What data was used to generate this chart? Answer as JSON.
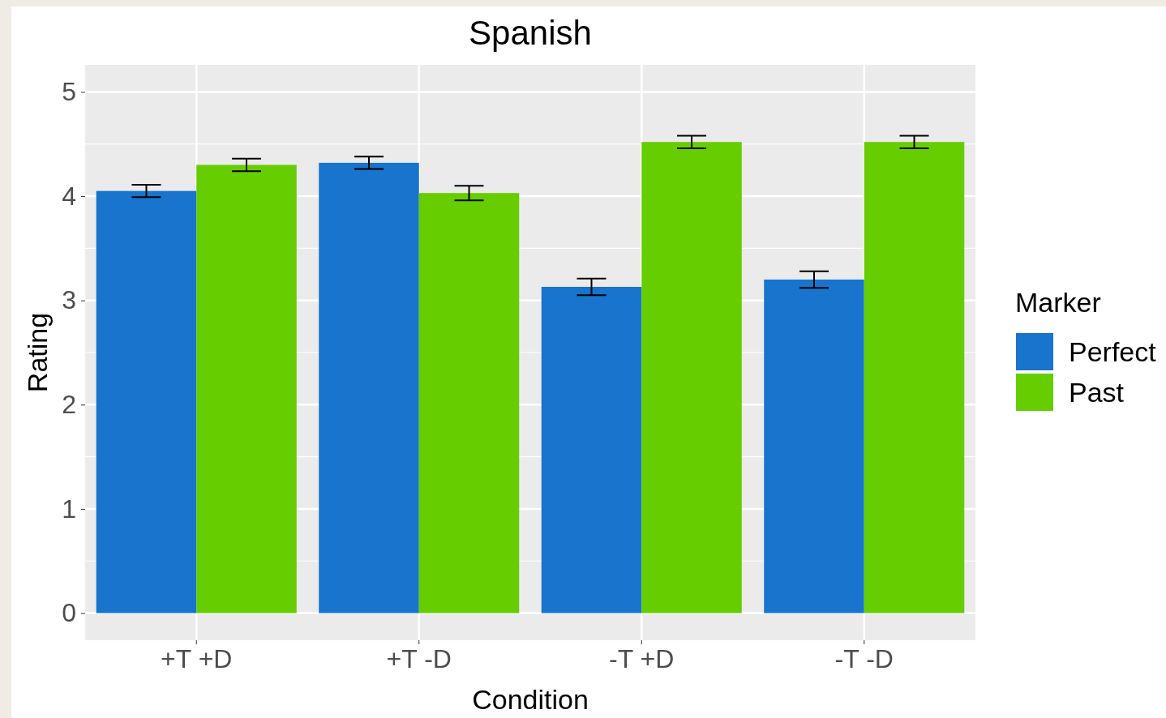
{
  "chart_data": {
    "type": "bar",
    "title": "Spanish",
    "xlabel": "Condition",
    "ylabel": "Rating",
    "legend_title": "Marker",
    "categories": [
      "+T +D",
      "+T -D",
      "-T +D",
      "-T -D"
    ],
    "series": [
      {
        "name": "Perfect",
        "color": "#1874cd",
        "values": [
          4.05,
          4.32,
          3.13,
          3.2
        ],
        "errors": [
          0.06,
          0.06,
          0.08,
          0.08
        ]
      },
      {
        "name": "Past",
        "color": "#66cd00",
        "values": [
          4.3,
          4.03,
          4.52,
          4.52
        ],
        "errors": [
          0.06,
          0.07,
          0.06,
          0.06
        ]
      }
    ],
    "ylim": [
      -0.26,
      5.26
    ],
    "yticks": [
      0,
      1,
      2,
      3,
      4,
      5
    ],
    "grid": true,
    "legend": "right"
  }
}
